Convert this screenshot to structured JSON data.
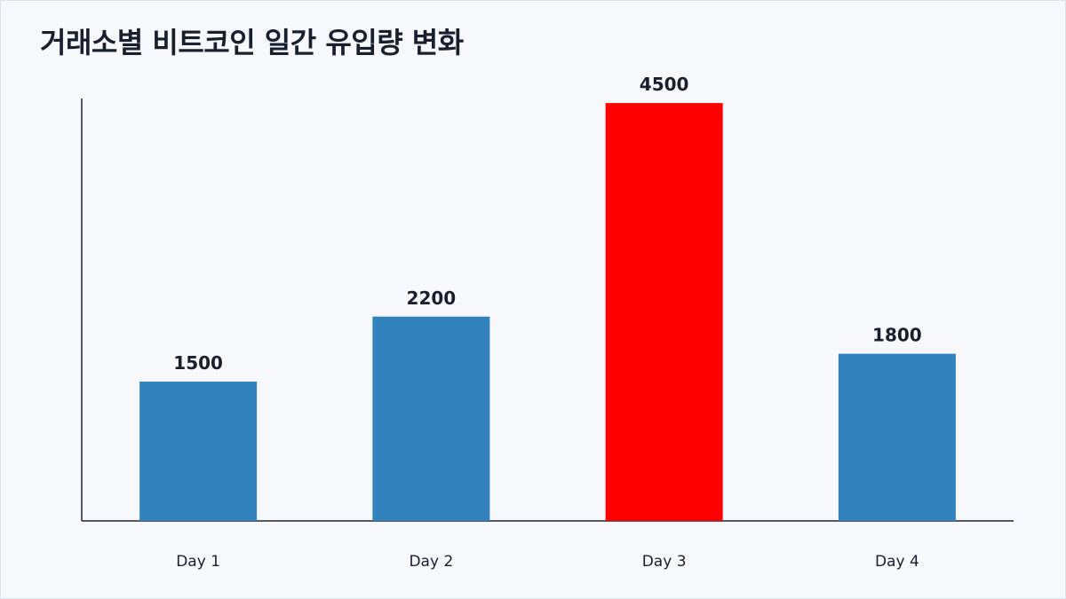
{
  "chart_data": {
    "type": "bar",
    "title": "거래소별 비트코인 일간 유입량 변화",
    "categories": [
      "Day 1",
      "Day 2",
      "Day 3",
      "Day 4"
    ],
    "values": [
      1500,
      2200,
      4500,
      1800
    ],
    "bar_colors": [
      "#3182bd",
      "#3182bd",
      "#ff0000",
      "#3182bd"
    ],
    "ylim": [
      0,
      5600
    ],
    "xlabel": "",
    "ylabel": "",
    "grid": false,
    "data_labels": true
  },
  "colors": {
    "default_bar": "#3182bd",
    "highlight_bar": "#ff0000",
    "background": "#f6f8fc",
    "text": "#1a1f2e",
    "axis": "#1f2433"
  }
}
